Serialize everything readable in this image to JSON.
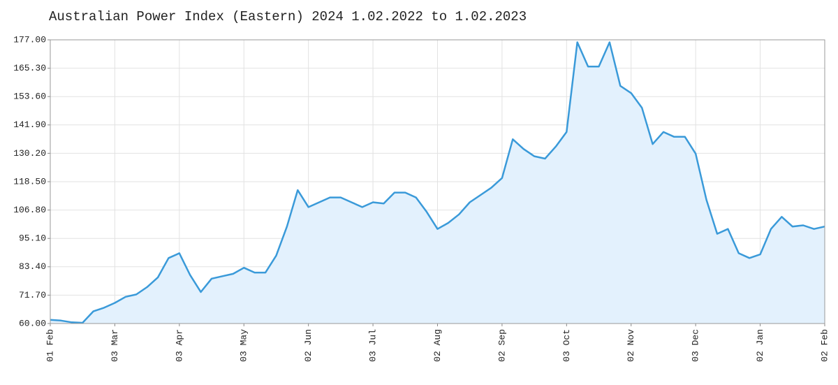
{
  "chart_data": {
    "type": "area",
    "title": "Australian Power Index (Eastern) 2024 1.02.2022 to 1.02.2023",
    "categories": [
      "01 Feb",
      null,
      null,
      null,
      null,
      null,
      "03 Mar",
      null,
      null,
      null,
      null,
      null,
      "03 Apr",
      null,
      null,
      null,
      null,
      null,
      "03 May",
      null,
      null,
      null,
      null,
      null,
      "02 Jun",
      null,
      null,
      null,
      null,
      null,
      "03 Jul",
      null,
      null,
      null,
      null,
      null,
      "02 Aug",
      null,
      null,
      null,
      null,
      null,
      "02 Sep",
      null,
      null,
      null,
      null,
      null,
      "03 Oct",
      null,
      null,
      null,
      null,
      null,
      "02 Nov",
      null,
      null,
      null,
      null,
      null,
      "03 Dec",
      null,
      null,
      null,
      null,
      null,
      "02 Jan",
      null,
      null,
      null,
      null,
      null,
      "02 Feb"
    ],
    "values": [
      61.5,
      61.2,
      60.5,
      60.3,
      65,
      66.5,
      68.5,
      71,
      72,
      75,
      79,
      87,
      89,
      80,
      73,
      78.5,
      79.5,
      80.5,
      83,
      81,
      81,
      88,
      100,
      115,
      108,
      110,
      112,
      112,
      110,
      108,
      110,
      109.5,
      114,
      114,
      112,
      106,
      99,
      101.5,
      105,
      110,
      113,
      116,
      120,
      136,
      132,
      129,
      128,
      133,
      139,
      176,
      166,
      166,
      176,
      158,
      155,
      149,
      134,
      139,
      137,
      137,
      130,
      111,
      97,
      99,
      89,
      87,
      88.5,
      99,
      104,
      100,
      100.5,
      99,
      100
    ],
    "color": "#3a9ad9",
    "fill": "#e3f1fd",
    "ylim": [
      60,
      177
    ],
    "yticks": [
      {
        "value": 60,
        "label": "60.00"
      },
      {
        "value": 71.7,
        "label": "71.70"
      },
      {
        "value": 83.4,
        "label": "83.40"
      },
      {
        "value": 95.1,
        "label": "95.10"
      },
      {
        "value": 106.8,
        "label": "106.80"
      },
      {
        "value": 118.5,
        "label": "118.50"
      },
      {
        "value": 130.2,
        "label": "130.20"
      },
      {
        "value": 141.9,
        "label": "141.90"
      },
      {
        "value": 153.6,
        "label": "153.60"
      },
      {
        "value": 165.3,
        "label": "165.30"
      },
      {
        "value": 177,
        "label": "177.00"
      }
    ],
    "grid": true
  }
}
